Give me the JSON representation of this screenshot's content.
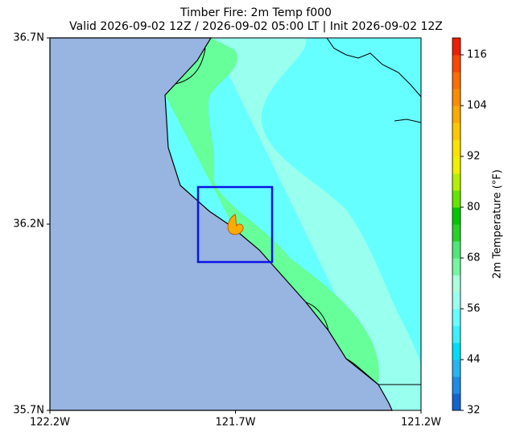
{
  "title": "Timber Fire: 2m Temp f000",
  "subtitle": "Valid 2026-09-02 12Z / 2026-09-02 05:00 LT | Init 2026-09-02 12Z",
  "map": {
    "latlim": [
      35.7,
      36.7
    ],
    "lonlim": [
      -122.2,
      -121.2
    ],
    "latticks": [
      {
        "value": 35.7,
        "label": "35.7N"
      },
      {
        "value": 36.2,
        "label": "36.2N"
      },
      {
        "value": 36.7,
        "label": "36.7N"
      }
    ],
    "lonticks": [
      {
        "value": -122.2,
        "label": "122.2W"
      },
      {
        "value": -121.7,
        "label": "121.7W"
      },
      {
        "value": -121.2,
        "label": "121.2W"
      }
    ]
  },
  "colorbar": {
    "label": "2m Temperature (°F)",
    "lim": [
      32,
      120
    ],
    "ticks": [
      32,
      44,
      56,
      68,
      80,
      92,
      104,
      116
    ],
    "colors": [
      "#1464d2",
      "#1e8ce6",
      "#28b4f0",
      "#00dcff",
      "#3cf0ff",
      "#66ffff",
      "#99ffee",
      "#aaffdd",
      "#78f5a0",
      "#50e678",
      "#28d228",
      "#00c800",
      "#64e600",
      "#b4f000",
      "#f0f000",
      "#ffe100",
      "#ffc800",
      "#ffaa00",
      "#ff8c00",
      "#ff6e00",
      "#ff4600",
      "#f01e00"
    ]
  }
}
